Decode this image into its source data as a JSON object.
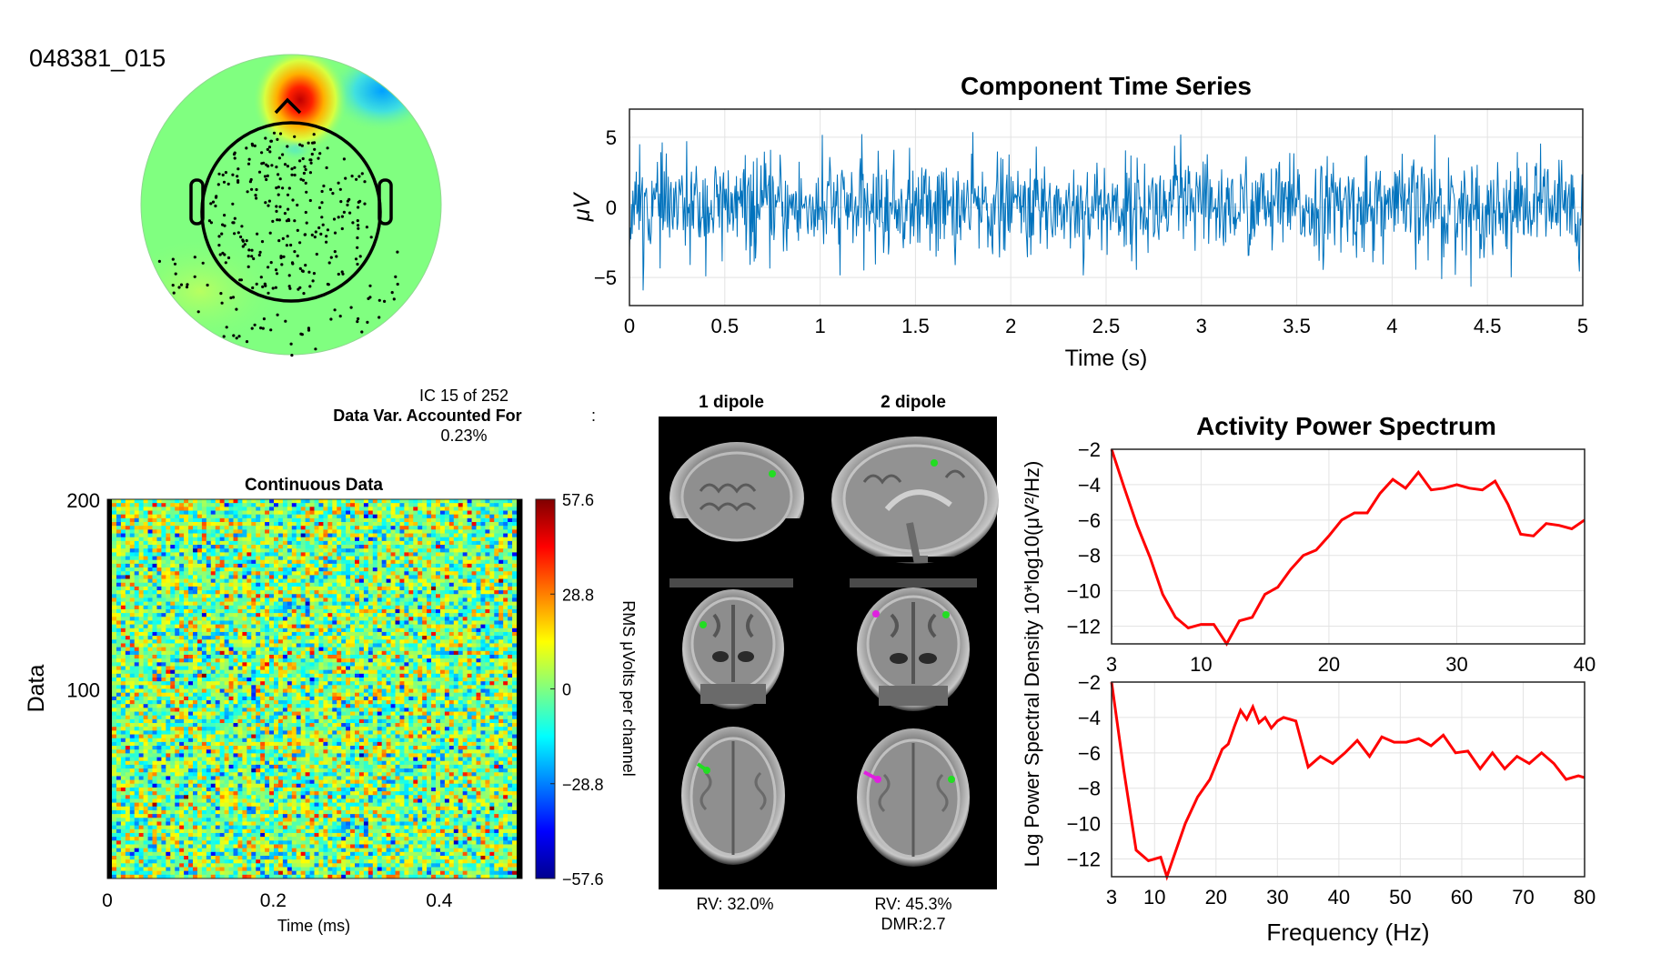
{
  "page": {
    "component_id": "048381_015",
    "ic_label": "IC 15 of 252",
    "var_label": "Data Var. Accounted For",
    "var_value": "0.23%"
  },
  "colormap_stops": [
    "#00008f",
    "#0000ff",
    "#00ffff",
    "#80ff80",
    "#ffff00",
    "#ff0000",
    "#800000"
  ],
  "trace_color": "#0072bd",
  "spectrum_color": "#ff0000",
  "chart_data": [
    {
      "id": "timeseries",
      "type": "line",
      "title": "Component Time Series",
      "xlabel": "Time (s)",
      "ylabel": "μV",
      "xlim": [
        0,
        5
      ],
      "ylim": [
        -7,
        7
      ],
      "xticks": [
        0,
        0.5,
        1,
        1.5,
        2,
        2.5,
        3,
        3.5,
        4,
        4.5,
        5
      ],
      "xtick_labels": [
        "0",
        "0.5",
        "1",
        "1.5",
        "2",
        "2.5",
        "3",
        "3.5",
        "4",
        "4.5",
        "5"
      ],
      "yticks": [
        -5,
        0,
        5
      ],
      "ytick_labels": [
        "−5",
        "0",
        "5"
      ],
      "grid": true
    },
    {
      "id": "continuous",
      "type": "heatmap",
      "title": "Continuous Data",
      "xlabel": "Time (ms)",
      "ylabel": "Data",
      "xlim": [
        0,
        0.5
      ],
      "ylim": [
        0,
        200
      ],
      "xticks": [
        0,
        0.2,
        0.4
      ],
      "xtick_labels": [
        "0",
        "0.2",
        "0.4"
      ],
      "yticks": [
        100,
        200
      ],
      "ytick_labels": [
        "100",
        "200"
      ],
      "colorbar": {
        "label": "RMS μVolts per channel",
        "clim": [
          -57.6,
          57.6
        ],
        "ticks": [
          57.6,
          28.8,
          0,
          -28.8,
          -57.6
        ],
        "tick_labels": [
          "57.6",
          "28.8",
          "0",
          "−28.8",
          "−57.6"
        ]
      }
    },
    {
      "id": "spectrum_top",
      "type": "line",
      "title": "Activity Power Spectrum",
      "xlim": [
        3,
        40
      ],
      "ylim": [
        -13,
        -2
      ],
      "xticks": [
        3,
        10,
        20,
        30,
        40
      ],
      "xtick_labels": [
        "3",
        "10",
        "20",
        "30",
        "40"
      ],
      "yticks": [
        -2,
        -4,
        -6,
        -8,
        -10,
        -12
      ],
      "ytick_labels": [
        "−2",
        "−4",
        "−6",
        "−8",
        "−10",
        "−12"
      ],
      "grid": true,
      "x": [
        3,
        4,
        5,
        6,
        7,
        8,
        9,
        10,
        11,
        12,
        13,
        14,
        15,
        16,
        17,
        18,
        19,
        20,
        21,
        22,
        23,
        24,
        25,
        26,
        27,
        28,
        29,
        30,
        31,
        32,
        33,
        34,
        35,
        36,
        37,
        38,
        39,
        40
      ],
      "y": [
        -2.0,
        -4.2,
        -6.3,
        -8.1,
        -10.2,
        -11.5,
        -12.1,
        -11.9,
        -11.9,
        -13.0,
        -11.7,
        -11.5,
        -10.2,
        -9.8,
        -8.8,
        -8.0,
        -7.7,
        -6.9,
        -6.0,
        -5.6,
        -5.6,
        -4.5,
        -3.7,
        -4.2,
        -3.3,
        -4.3,
        -4.2,
        -4.0,
        -4.2,
        -4.3,
        -3.8,
        -5.1,
        -6.8,
        -6.9,
        -6.2,
        -6.3,
        -6.5,
        -6.0
      ]
    },
    {
      "id": "spectrum_bottom",
      "type": "line",
      "xlabel": "Frequency (Hz)",
      "xlim": [
        3,
        80
      ],
      "ylim": [
        -13,
        -2
      ],
      "xticks": [
        3,
        10,
        20,
        30,
        40,
        50,
        60,
        70,
        80
      ],
      "xtick_labels": [
        "3",
        "10",
        "20",
        "30",
        "40",
        "50",
        "60",
        "70",
        "80"
      ],
      "yticks": [
        -2,
        -4,
        -6,
        -8,
        -10,
        -12
      ],
      "ytick_labels": [
        "−2",
        "−4",
        "−6",
        "−8",
        "−10",
        "−12"
      ],
      "grid": true,
      "x": [
        3,
        5,
        7,
        9,
        11,
        12,
        13,
        15,
        17,
        19,
        21,
        22,
        23,
        24,
        25,
        26,
        27,
        28,
        29,
        30,
        31,
        33,
        35,
        37,
        39,
        41,
        43,
        45,
        47,
        49,
        51,
        53,
        55,
        57,
        59,
        61,
        63,
        65,
        67,
        69,
        71,
        73,
        75,
        77,
        79,
        80
      ],
      "y": [
        -2.0,
        -7.0,
        -11.5,
        -12.1,
        -11.9,
        -13.0,
        -12.0,
        -10.0,
        -8.5,
        -7.5,
        -5.8,
        -5.5,
        -4.5,
        -3.6,
        -4.1,
        -3.4,
        -4.3,
        -4.0,
        -4.6,
        -4.2,
        -4.0,
        -4.2,
        -6.8,
        -6.2,
        -6.6,
        -6.0,
        -5.3,
        -6.2,
        -5.1,
        -5.4,
        -5.4,
        -5.2,
        -5.6,
        -5.0,
        -6.0,
        -5.9,
        -6.9,
        -6.0,
        -6.9,
        -6.2,
        -6.6,
        -6.0,
        -6.6,
        -7.5,
        -7.3,
        -7.4
      ]
    },
    {
      "id": "spectrum_ylabel",
      "ylabel": "Log Power Spectral Density 10*log10(μV²/Hz)"
    }
  ],
  "dipoles": {
    "col1_label": "1 dipole",
    "col2_label": "2 dipole",
    "rv1": "RV: 32.0%",
    "rv2": "RV: 45.3%",
    "dmr": "DMR:2.7"
  }
}
